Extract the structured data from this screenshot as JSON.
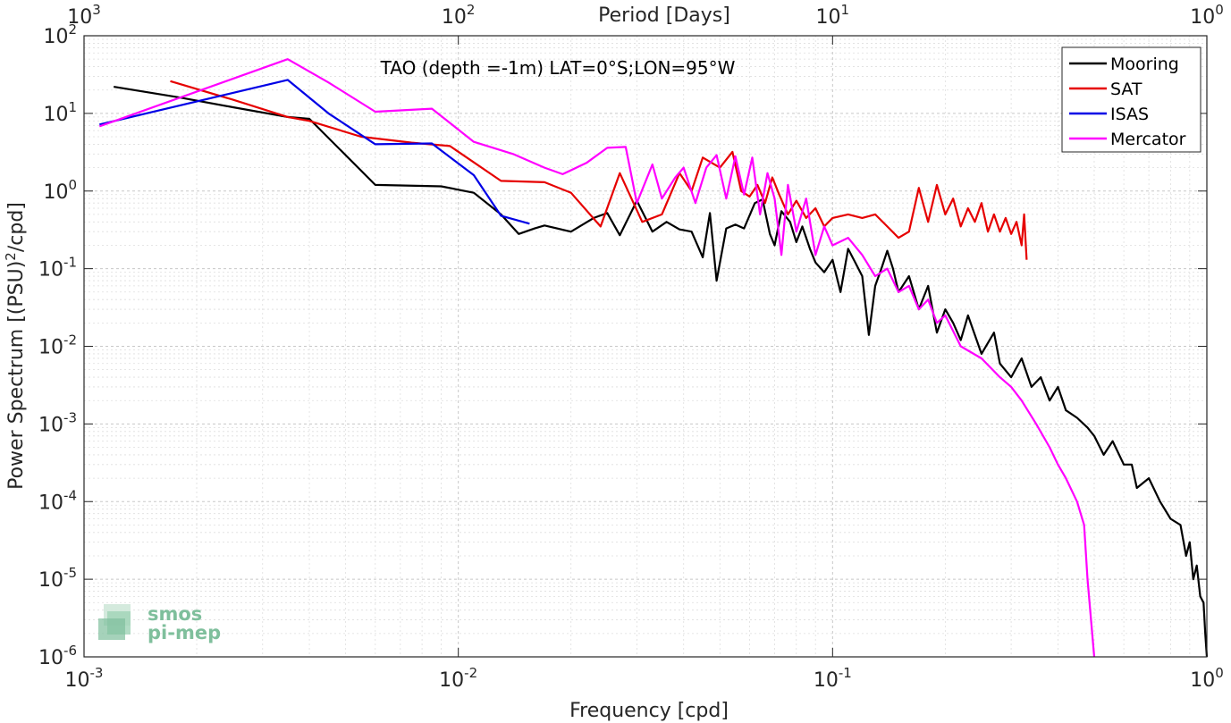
{
  "chart_data": {
    "type": "line",
    "title": "TAO (depth =-1m) LAT=0°S;LON=95°W",
    "xlabel": "Frequency [cpd]",
    "ylabel": "Power Spectrum [(PSU)^2/cpd]",
    "top_xlabel": "Period [Days]",
    "x_scale": "log",
    "y_scale": "log",
    "xlim": [
      0.001,
      1
    ],
    "ylim": [
      1e-06,
      100
    ],
    "grid": true,
    "legend_position": "top-right",
    "x_ticks": [
      {
        "value": 0.001,
        "base": "10",
        "exp": "-3"
      },
      {
        "value": 0.01,
        "base": "10",
        "exp": "-2"
      },
      {
        "value": 0.1,
        "base": "10",
        "exp": "-1"
      },
      {
        "value": 1,
        "base": "10",
        "exp": "0"
      }
    ],
    "top_ticks": [
      {
        "value": 0.001,
        "base": "10",
        "exp": "3"
      },
      {
        "value": 0.01,
        "base": "10",
        "exp": "2"
      },
      {
        "value": 0.1,
        "base": "10",
        "exp": "1"
      },
      {
        "value": 1,
        "base": "10",
        "exp": "0"
      }
    ],
    "y_ticks": [
      {
        "value": 100,
        "base": "10",
        "exp": "2"
      },
      {
        "value": 10,
        "base": "10",
        "exp": "1"
      },
      {
        "value": 1,
        "base": "10",
        "exp": "0"
      },
      {
        "value": 0.1,
        "base": "10",
        "exp": "-1"
      },
      {
        "value": 0.01,
        "base": "10",
        "exp": "-2"
      },
      {
        "value": 0.001,
        "base": "10",
        "exp": "-3"
      },
      {
        "value": 0.0001,
        "base": "10",
        "exp": "-4"
      },
      {
        "value": 1e-05,
        "base": "10",
        "exp": "-5"
      },
      {
        "value": 1e-06,
        "base": "10",
        "exp": "-6"
      }
    ],
    "series": [
      {
        "name": "Mooring",
        "color": "#000000",
        "points": [
          [
            0.0012,
            22
          ],
          [
            0.0018,
            16
          ],
          [
            0.0025,
            12
          ],
          [
            0.0035,
            9
          ],
          [
            0.004,
            8.5
          ],
          [
            0.006,
            1.2
          ],
          [
            0.009,
            1.15
          ],
          [
            0.011,
            0.95
          ],
          [
            0.013,
            0.5
          ],
          [
            0.0145,
            0.28
          ],
          [
            0.016,
            0.33
          ],
          [
            0.017,
            0.36
          ],
          [
            0.02,
            0.3
          ],
          [
            0.023,
            0.45
          ],
          [
            0.025,
            0.52
          ],
          [
            0.027,
            0.27
          ],
          [
            0.03,
            0.75
          ],
          [
            0.033,
            0.3
          ],
          [
            0.036,
            0.4
          ],
          [
            0.039,
            0.32
          ],
          [
            0.042,
            0.3
          ],
          [
            0.045,
            0.14
          ],
          [
            0.047,
            0.52
          ],
          [
            0.049,
            0.07
          ],
          [
            0.052,
            0.33
          ],
          [
            0.055,
            0.37
          ],
          [
            0.058,
            0.33
          ],
          [
            0.062,
            0.7
          ],
          [
            0.065,
            0.78
          ],
          [
            0.068,
            0.28
          ],
          [
            0.07,
            0.2
          ],
          [
            0.073,
            0.55
          ],
          [
            0.077,
            0.4
          ],
          [
            0.08,
            0.22
          ],
          [
            0.083,
            0.35
          ],
          [
            0.087,
            0.18
          ],
          [
            0.09,
            0.12
          ],
          [
            0.095,
            0.09
          ],
          [
            0.1,
            0.13
          ],
          [
            0.105,
            0.05
          ],
          [
            0.11,
            0.18
          ],
          [
            0.115,
            0.12
          ],
          [
            0.12,
            0.08
          ],
          [
            0.125,
            0.014
          ],
          [
            0.13,
            0.06
          ],
          [
            0.135,
            0.1
          ],
          [
            0.14,
            0.17
          ],
          [
            0.145,
            0.1
          ],
          [
            0.15,
            0.05
          ],
          [
            0.16,
            0.08
          ],
          [
            0.17,
            0.03
          ],
          [
            0.18,
            0.06
          ],
          [
            0.19,
            0.015
          ],
          [
            0.2,
            0.03
          ],
          [
            0.21,
            0.02
          ],
          [
            0.22,
            0.012
          ],
          [
            0.23,
            0.025
          ],
          [
            0.25,
            0.008
          ],
          [
            0.27,
            0.015
          ],
          [
            0.28,
            0.006
          ],
          [
            0.3,
            0.004
          ],
          [
            0.32,
            0.007
          ],
          [
            0.34,
            0.003
          ],
          [
            0.36,
            0.004
          ],
          [
            0.38,
            0.002
          ],
          [
            0.4,
            0.003
          ],
          [
            0.42,
            0.0015
          ],
          [
            0.45,
            0.0012
          ],
          [
            0.48,
            0.0009
          ],
          [
            0.5,
            0.0007
          ],
          [
            0.53,
            0.0004
          ],
          [
            0.56,
            0.0006
          ],
          [
            0.6,
            0.0003
          ],
          [
            0.63,
            0.0003
          ],
          [
            0.65,
            0.00015
          ],
          [
            0.7,
            0.0002
          ],
          [
            0.75,
            0.0001
          ],
          [
            0.8,
            6e-05
          ],
          [
            0.85,
            5e-05
          ],
          [
            0.88,
            2e-05
          ],
          [
            0.9,
            3e-05
          ],
          [
            0.92,
            1e-05
          ],
          [
            0.94,
            1.5e-05
          ],
          [
            0.96,
            6e-06
          ],
          [
            0.98,
            5e-06
          ],
          [
            0.99,
            2e-06
          ],
          [
            1,
            1e-06
          ]
        ]
      },
      {
        "name": "SAT",
        "color": "#e60000",
        "points": [
          [
            0.0017,
            26
          ],
          [
            0.0025,
            15
          ],
          [
            0.0035,
            9
          ],
          [
            0.004,
            8
          ],
          [
            0.0055,
            5
          ],
          [
            0.0075,
            4.2
          ],
          [
            0.0095,
            3.8
          ],
          [
            0.013,
            1.35
          ],
          [
            0.017,
            1.3
          ],
          [
            0.02,
            0.95
          ],
          [
            0.024,
            0.35
          ],
          [
            0.027,
            1.7
          ],
          [
            0.031,
            0.4
          ],
          [
            0.035,
            0.5
          ],
          [
            0.039,
            1.7
          ],
          [
            0.042,
            1
          ],
          [
            0.045,
            2.7
          ],
          [
            0.05,
            2
          ],
          [
            0.054,
            3.2
          ],
          [
            0.057,
            1
          ],
          [
            0.06,
            0.85
          ],
          [
            0.063,
            1.2
          ],
          [
            0.066,
            0.7
          ],
          [
            0.069,
            1.5
          ],
          [
            0.072,
            0.9
          ],
          [
            0.076,
            0.5
          ],
          [
            0.08,
            0.75
          ],
          [
            0.085,
            0.45
          ],
          [
            0.09,
            0.6
          ],
          [
            0.095,
            0.35
          ],
          [
            0.1,
            0.45
          ],
          [
            0.11,
            0.5
          ],
          [
            0.12,
            0.45
          ],
          [
            0.13,
            0.5
          ],
          [
            0.14,
            0.35
          ],
          [
            0.15,
            0.25
          ],
          [
            0.16,
            0.3
          ],
          [
            0.17,
            1.1
          ],
          [
            0.18,
            0.4
          ],
          [
            0.19,
            1.2
          ],
          [
            0.2,
            0.5
          ],
          [
            0.21,
            0.8
          ],
          [
            0.22,
            0.35
          ],
          [
            0.23,
            0.6
          ],
          [
            0.24,
            0.4
          ],
          [
            0.25,
            0.7
          ],
          [
            0.26,
            0.3
          ],
          [
            0.27,
            0.5
          ],
          [
            0.28,
            0.3
          ],
          [
            0.29,
            0.45
          ],
          [
            0.3,
            0.28
          ],
          [
            0.31,
            0.4
          ],
          [
            0.32,
            0.2
          ],
          [
            0.325,
            0.5
          ],
          [
            0.33,
            0.13
          ]
        ]
      },
      {
        "name": "ISAS",
        "color": "#0000e6",
        "points": [
          [
            0.0011,
            7.2
          ],
          [
            0.0035,
            27
          ],
          [
            0.0045,
            10
          ],
          [
            0.006,
            4
          ],
          [
            0.0085,
            4.1
          ],
          [
            0.011,
            1.6
          ],
          [
            0.013,
            0.48
          ],
          [
            0.0155,
            0.38
          ]
        ]
      },
      {
        "name": "Mercator",
        "color": "#ff00ff",
        "points": [
          [
            0.0011,
            6.8
          ],
          [
            0.0035,
            50
          ],
          [
            0.0045,
            25
          ],
          [
            0.006,
            10.5
          ],
          [
            0.0085,
            11.5
          ],
          [
            0.011,
            4.3
          ],
          [
            0.014,
            3
          ],
          [
            0.017,
            2
          ],
          [
            0.019,
            1.65
          ],
          [
            0.022,
            2.3
          ],
          [
            0.025,
            3.6
          ],
          [
            0.028,
            3.7
          ],
          [
            0.03,
            0.7
          ],
          [
            0.033,
            2.2
          ],
          [
            0.035,
            0.8
          ],
          [
            0.038,
            1.5
          ],
          [
            0.04,
            2
          ],
          [
            0.043,
            0.7
          ],
          [
            0.046,
            2
          ],
          [
            0.049,
            2.9
          ],
          [
            0.052,
            0.8
          ],
          [
            0.055,
            2.8
          ],
          [
            0.058,
            0.9
          ],
          [
            0.061,
            2.7
          ],
          [
            0.064,
            0.5
          ],
          [
            0.067,
            1.7
          ],
          [
            0.07,
            0.8
          ],
          [
            0.073,
            0.15
          ],
          [
            0.076,
            1.2
          ],
          [
            0.08,
            0.3
          ],
          [
            0.085,
            0.8
          ],
          [
            0.09,
            0.15
          ],
          [
            0.095,
            0.35
          ],
          [
            0.1,
            0.2
          ],
          [
            0.11,
            0.25
          ],
          [
            0.12,
            0.15
          ],
          [
            0.13,
            0.08
          ],
          [
            0.14,
            0.1
          ],
          [
            0.15,
            0.05
          ],
          [
            0.16,
            0.06
          ],
          [
            0.17,
            0.03
          ],
          [
            0.18,
            0.04
          ],
          [
            0.19,
            0.02
          ],
          [
            0.2,
            0.025
          ],
          [
            0.22,
            0.01
          ],
          [
            0.25,
            0.007
          ],
          [
            0.28,
            0.004
          ],
          [
            0.3,
            0.003
          ],
          [
            0.32,
            0.002
          ],
          [
            0.35,
            0.001
          ],
          [
            0.38,
            0.0005
          ],
          [
            0.4,
            0.0003
          ],
          [
            0.42,
            0.0002
          ],
          [
            0.45,
            0.0001
          ],
          [
            0.47,
            5e-05
          ],
          [
            0.48,
            1e-05
          ],
          [
            0.5,
            1e-06
          ]
        ]
      }
    ]
  },
  "logo": {
    "line1": "smos",
    "line2": "pi-mep",
    "color": "#7fbf9c"
  }
}
